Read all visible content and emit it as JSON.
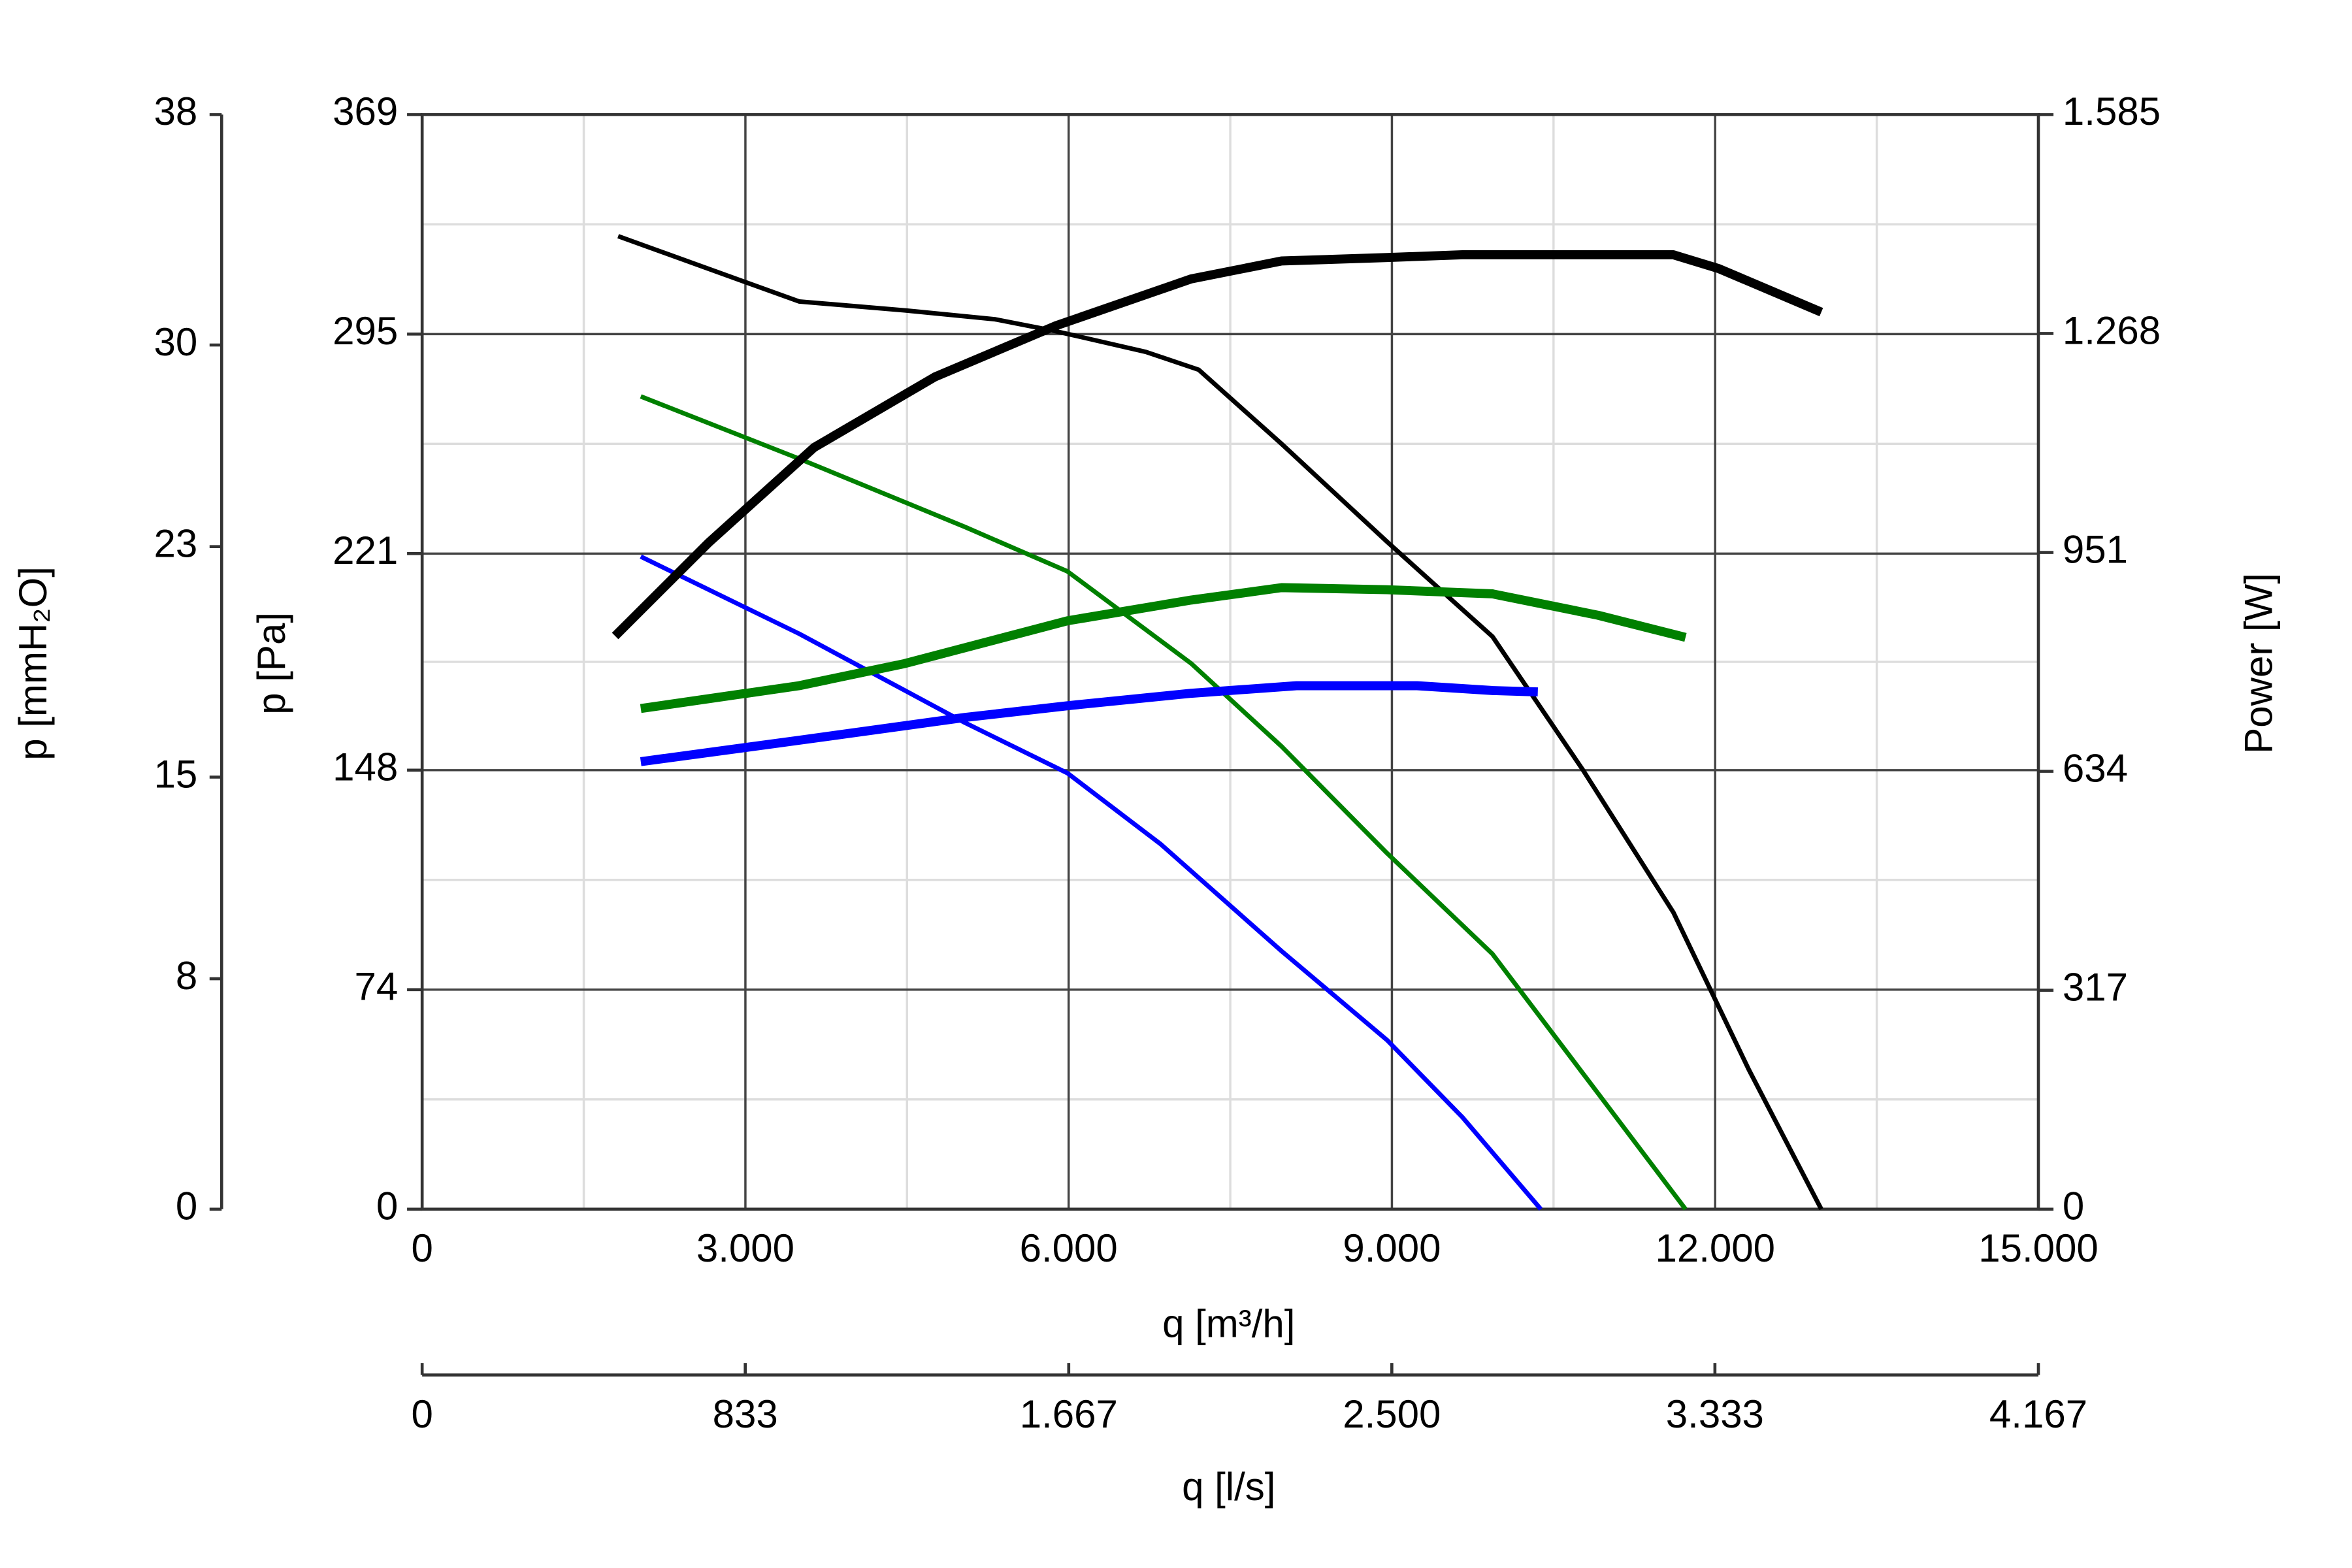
{
  "chart_data": {
    "type": "line",
    "xlabel": "q [m³/h]",
    "ylabel": "p [Pa]",
    "y2label": "Power [W]",
    "y3label": "p [mmH₂O]",
    "x2label": "q [l/s]",
    "xlim": [
      0,
      15000
    ],
    "xticks": [
      0,
      {
        "value": 3000,
        "label": "3.000"
      },
      {
        "value": 6000,
        "label": "6.000"
      },
      {
        "value": 9000,
        "label": "9.000"
      },
      {
        "value": 12000,
        "label": "12.000"
      },
      {
        "value": 15000,
        "label": "15.000"
      }
    ],
    "ylim": [
      0,
      369
    ],
    "yticks": [
      0,
      74,
      148,
      221,
      295,
      369
    ],
    "y2lim": [
      0,
      1585
    ],
    "y2ticks": [
      0,
      317,
      634,
      951,
      {
        "value": 1268,
        "label": "1.268"
      },
      {
        "value": 1585,
        "label": "1.585"
      }
    ],
    "y3lim": [
      0,
      38
    ],
    "y3ticks": [
      0,
      8,
      15,
      23,
      30,
      38
    ],
    "x2lim": [
      0,
      4167
    ],
    "x2ticks": [
      0,
      833,
      {
        "value": 1667,
        "label": "1.667"
      },
      {
        "value": 2500,
        "label": "2.500"
      },
      {
        "value": 3333,
        "label": "3.333"
      },
      {
        "value": 4167,
        "label": "4.167"
      }
    ],
    "grid": true,
    "series": [
      {
        "color": "#000000",
        "x": [
          1819,
          3498,
          4477,
          5317,
          5877,
          6716,
          7206,
          7976,
          8955,
          9934,
          10774,
          11613,
          12313,
          12985
        ],
        "values": [
          328,
          306,
          303,
          300,
          296,
          289,
          283,
          258,
          225,
          193,
          148,
          100,
          47,
          0
        ]
      },
      {
        "color": "#008000",
        "x": [
          2029,
          3498,
          5037,
          5989,
          7136,
          7976,
          8955,
          9934,
          10914,
          11725
        ],
        "values": [
          274,
          253,
          230,
          215,
          184,
          156,
          120,
          86,
          39,
          0
        ]
      },
      {
        "color": "#0000ff",
        "x": [
          2029,
          3498,
          5037,
          5989,
          6856,
          7976,
          8955,
          9654,
          10382
        ],
        "values": [
          220,
          194,
          164,
          147,
          123,
          87,
          57,
          31,
          0
        ]
      },
      {
        "color": "#000000",
        "axis": "y2",
        "x": [
          1791,
          2658,
          3638,
          4757,
          5877,
          7136,
          7976,
          8955,
          9654,
          11613,
          12033,
          12985
        ],
        "values": [
          830,
          965,
          1103,
          1205,
          1279,
          1347,
          1373,
          1378,
          1382,
          1382,
          1362,
          1299
        ]
      },
      {
        "color": "#008000",
        "axis": "y2",
        "x": [
          2029,
          3498,
          4477,
          5989,
          7136,
          7976,
          8955,
          9934,
          10914,
          11725
        ],
        "values": [
          725,
          758,
          790,
          852,
          882,
          900,
          897,
          891,
          860,
          828
        ]
      },
      {
        "color": "#0000ff",
        "axis": "y2",
        "x": [
          2029,
          3498,
          5037,
          5989,
          7136,
          8115,
          9234,
          9934,
          10354
        ],
        "values": [
          648,
          679,
          712,
          729,
          747,
          758,
          758,
          751,
          749
        ]
      }
    ]
  }
}
